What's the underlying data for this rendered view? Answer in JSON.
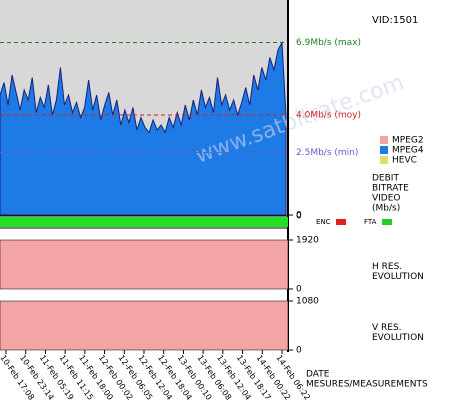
{
  "vid": "VID:1501",
  "chart_data": {
    "type": "area",
    "ylim": [
      0,
      8.6
    ],
    "yticks": [
      0
    ],
    "reference_lines": [
      {
        "value": 6.9,
        "label": "6.9Mb/s (max)",
        "color": "#208020"
      },
      {
        "value": 4.0,
        "label": "4.0Mb/s (moy)",
        "color": "#d02020"
      },
      {
        "value": 2.5,
        "label": "2.5Mb/s (min)",
        "color": "#6060d0"
      }
    ],
    "series": [
      {
        "color": "#1e7be6",
        "values": [
          4.8,
          5.3,
          4.4,
          5.6,
          4.9,
          4.2,
          5.0,
          4.6,
          5.5,
          4.1,
          4.7,
          4.3,
          5.2,
          4.0,
          4.6,
          5.9,
          4.4,
          4.8,
          4.1,
          4.5,
          3.9,
          4.3,
          5.4,
          4.2,
          4.8,
          3.8,
          4.4,
          4.9,
          4.0,
          4.6,
          3.6,
          4.2,
          3.7,
          4.3,
          3.4,
          3.9,
          3.5,
          3.3,
          3.8,
          3.4,
          3.6,
          3.3,
          3.9,
          3.5,
          4.1,
          3.6,
          4.4,
          3.8,
          4.6,
          4.0,
          5.0,
          4.3,
          4.7,
          4.1,
          5.5,
          4.4,
          4.8,
          4.2,
          4.6,
          4.0,
          4.5,
          5.1,
          4.4,
          5.6,
          5.0,
          5.9,
          5.4,
          6.3,
          5.8,
          6.6,
          6.9,
          4.0
        ]
      }
    ],
    "legend": [
      {
        "name": "MPEG2",
        "color": "#f4a4a4"
      },
      {
        "name": "MPEG4",
        "color": "#1e7be6"
      },
      {
        "name": "HEVC",
        "color": "#d8e070"
      }
    ],
    "axis_title_lines": [
      "DEBIT",
      "BITRATE",
      "VIDEO",
      "(Mb/s)"
    ],
    "x_labels": [
      "10-Feb 17:08",
      "10-Feb 23:14",
      "11-Feb 05:19",
      "11-Feb 11:15",
      "11-Feb 18:00",
      "12-Feb 00:02",
      "12-Feb 06:05",
      "12-Feb 12:04",
      "12-Feb 18:04",
      "13-Feb 00:10",
      "13-Feb 06:08",
      "13-Feb 12:04",
      "13-Feb 18:17",
      "14-Feb 00:22",
      "14-Feb 06:22"
    ],
    "x_title_lines": [
      "DATE",
      "MESURES/MEASUREMENTS"
    ],
    "watermark": "www.satbitrate.com"
  },
  "status": {
    "label": "0",
    "enc": "ENC",
    "fta": "FTA",
    "enc_color": "#e02020",
    "fta_color": "#20d020",
    "bar_color": "#20e020"
  },
  "h_res": {
    "title_lines": [
      "H RES.",
      "EVOLUTION"
    ],
    "value": 1920,
    "ylim": [
      0,
      1920
    ],
    "yticks": [
      0,
      1920
    ],
    "color": "#f4a4a4"
  },
  "v_res": {
    "title_lines": [
      "V RES.",
      "EVOLUTION"
    ],
    "value": 1080,
    "ylim": [
      0,
      1080
    ],
    "yticks": [
      0,
      1080
    ],
    "color": "#f4a4a4"
  }
}
